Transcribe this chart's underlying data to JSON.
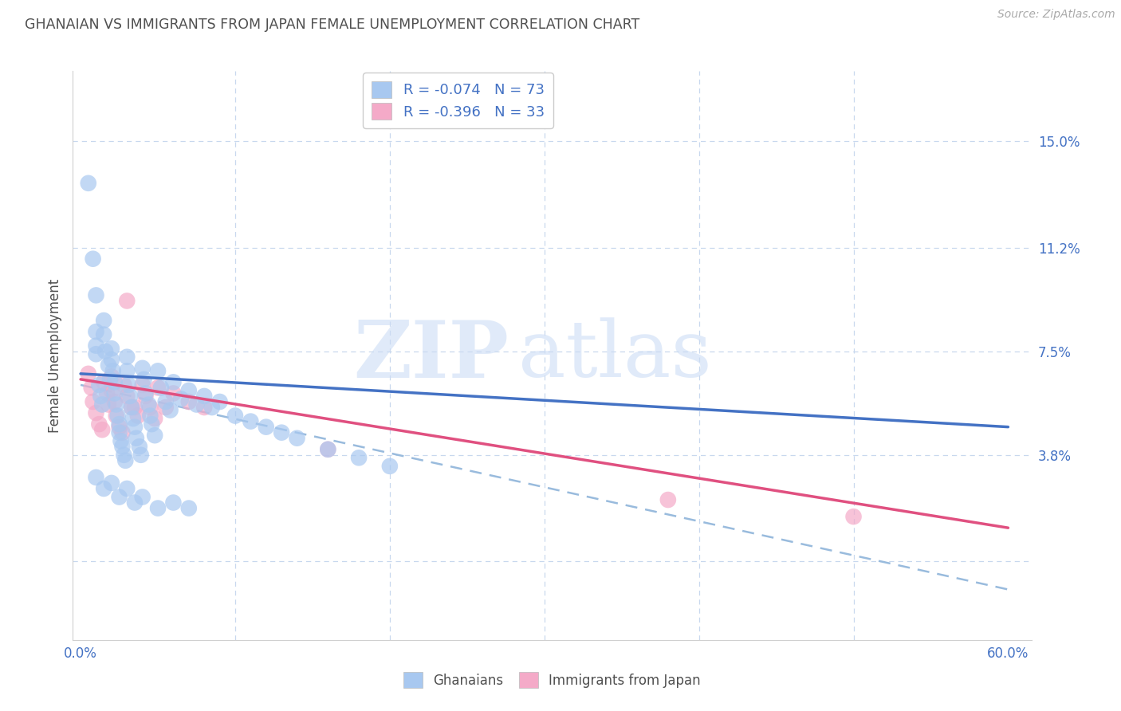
{
  "title": "GHANAIAN VS IMMIGRANTS FROM JAPAN FEMALE UNEMPLOYMENT CORRELATION CHART",
  "source": "Source: ZipAtlas.com",
  "ylabel": "Female Unemployment",
  "xlim": [
    -0.005,
    0.615
  ],
  "ylim": [
    -0.028,
    0.175
  ],
  "ytick_vals": [
    0.0,
    0.038,
    0.075,
    0.112,
    0.15
  ],
  "ytick_labels": [
    "",
    "3.8%",
    "7.5%",
    "11.2%",
    "15.0%"
  ],
  "xtick_vals": [
    0.0,
    0.1,
    0.2,
    0.3,
    0.4,
    0.5,
    0.6
  ],
  "xtick_labels": [
    "0.0%",
    "",
    "",
    "",
    "",
    "",
    "60.0%"
  ],
  "watermark_zip": "ZIP",
  "watermark_atlas": "atlas",
  "legend_blue_r": "R = -0.074",
  "legend_blue_n": "N = 73",
  "legend_pink_r": "R = -0.396",
  "legend_pink_n": "N = 33",
  "blue_color": "#a8c8f0",
  "pink_color": "#f4aac8",
  "blue_line_color": "#4472c4",
  "pink_line_color": "#e05080",
  "dashed_line_color": "#99bbdd",
  "title_color": "#505050",
  "ylabel_color": "#505050",
  "ytick_color": "#4472c4",
  "xtick_color": "#4472c4",
  "grid_color": "#c8d8ee",
  "spine_color": "#d0d0d0",
  "bg_color": "#ffffff",
  "blue_trend_x": [
    0.0,
    0.6
  ],
  "blue_trend_y": [
    0.067,
    0.048
  ],
  "pink_trend_x": [
    0.0,
    0.6
  ],
  "pink_trend_y": [
    0.065,
    0.012
  ],
  "dashed_trend_x": [
    0.0,
    0.6
  ],
  "dashed_trend_y": [
    0.063,
    -0.01
  ],
  "blue_x": [
    0.005,
    0.008,
    0.01,
    0.01,
    0.01,
    0.01,
    0.012,
    0.013,
    0.014,
    0.015,
    0.015,
    0.016,
    0.018,
    0.019,
    0.02,
    0.02,
    0.021,
    0.022,
    0.022,
    0.023,
    0.024,
    0.025,
    0.025,
    0.026,
    0.027,
    0.028,
    0.029,
    0.03,
    0.03,
    0.031,
    0.032,
    0.033,
    0.034,
    0.035,
    0.036,
    0.038,
    0.039,
    0.04,
    0.041,
    0.042,
    0.044,
    0.045,
    0.046,
    0.048,
    0.05,
    0.052,
    0.055,
    0.058,
    0.06,
    0.065,
    0.07,
    0.075,
    0.08,
    0.085,
    0.09,
    0.1,
    0.11,
    0.12,
    0.13,
    0.14,
    0.16,
    0.18,
    0.2,
    0.01,
    0.015,
    0.02,
    0.025,
    0.03,
    0.035,
    0.04,
    0.05,
    0.06,
    0.07
  ],
  "blue_y": [
    0.135,
    0.108,
    0.095,
    0.082,
    0.077,
    0.074,
    0.063,
    0.059,
    0.056,
    0.086,
    0.081,
    0.075,
    0.07,
    0.065,
    0.076,
    0.072,
    0.068,
    0.064,
    0.06,
    0.056,
    0.052,
    0.049,
    0.046,
    0.043,
    0.041,
    0.038,
    0.036,
    0.073,
    0.068,
    0.063,
    0.059,
    0.055,
    0.051,
    0.048,
    0.044,
    0.041,
    0.038,
    0.069,
    0.065,
    0.06,
    0.056,
    0.052,
    0.049,
    0.045,
    0.068,
    0.062,
    0.057,
    0.054,
    0.064,
    0.058,
    0.061,
    0.056,
    0.059,
    0.055,
    0.057,
    0.052,
    0.05,
    0.048,
    0.046,
    0.044,
    0.04,
    0.037,
    0.034,
    0.03,
    0.026,
    0.028,
    0.023,
    0.026,
    0.021,
    0.023,
    0.019,
    0.021,
    0.019
  ],
  "pink_x": [
    0.005,
    0.007,
    0.008,
    0.01,
    0.012,
    0.014,
    0.015,
    0.017,
    0.018,
    0.02,
    0.02,
    0.022,
    0.023,
    0.025,
    0.027,
    0.028,
    0.03,
    0.03,
    0.033,
    0.035,
    0.037,
    0.04,
    0.042,
    0.045,
    0.048,
    0.05,
    0.055,
    0.06,
    0.07,
    0.08,
    0.16,
    0.5,
    0.38
  ],
  "pink_y": [
    0.067,
    0.062,
    0.057,
    0.053,
    0.049,
    0.047,
    0.064,
    0.06,
    0.056,
    0.066,
    0.061,
    0.057,
    0.052,
    0.048,
    0.046,
    0.063,
    0.093,
    0.059,
    0.055,
    0.055,
    0.052,
    0.063,
    0.059,
    0.055,
    0.051,
    0.062,
    0.055,
    0.06,
    0.057,
    0.055,
    0.04,
    0.016,
    0.022
  ]
}
